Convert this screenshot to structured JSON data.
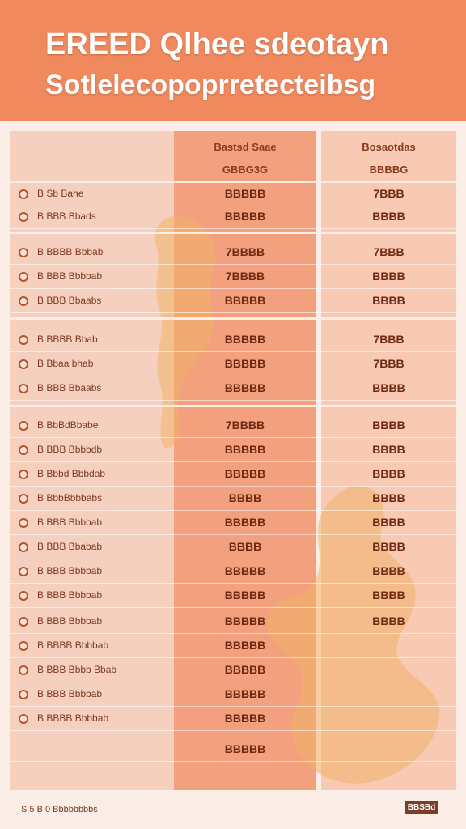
{
  "header": {
    "title_line1": "EREED Qlhee sdeotayn",
    "title_line2": "Sotlelecopoprretecteibsg"
  },
  "table": {
    "col_a_header": [
      "Bastsd Saae",
      "GBBG3G"
    ],
    "col_b_header": [
      "Bosaotdas",
      "BBBBG"
    ],
    "rows": [
      {
        "name": "B Sb Bahe",
        "a": "BBBBB",
        "b": "7BBB"
      },
      {
        "name": "B BBB Bbads",
        "a": "BBBBB",
        "b": "BBBB"
      },
      {
        "name": "B BBBB Bbbab",
        "a": "7BBBB",
        "b": "7BBB"
      },
      {
        "name": "B BBB Bbbbab",
        "a": "7BBBB",
        "b": "BBBB"
      },
      {
        "name": "B BBB Bbaabs",
        "a": "BBBBB",
        "b": "BBBB"
      },
      {
        "name": "B BBBB Bbab",
        "a": "BBBBB",
        "b": "7BBB"
      },
      {
        "name": "B Bbaa bhab",
        "a": "BBBBB",
        "b": "7BBB"
      },
      {
        "name": "B BBB Bbaabs",
        "a": "BBBBB",
        "b": "BBBB"
      },
      {
        "name": "B BbBdBbabe",
        "a": "7BBBB",
        "b": "BBBB"
      },
      {
        "name": "B BBB Bbbbdb",
        "a": "BBBBB",
        "b": "BBBB"
      },
      {
        "name": "B Bbbd Bbbdab",
        "a": "BBBBB",
        "b": "BBBB"
      },
      {
        "name": "B BbbBbbbabs",
        "a": "BBBB",
        "b": "BBBB"
      },
      {
        "name": "B BBB Bbbbab",
        "a": "BBBBB",
        "b": "BBBB"
      },
      {
        "name": "B BBB Bbabab",
        "a": "BBBB",
        "b": "BBBB"
      },
      {
        "name": "B BBB Bbbbab",
        "a": "BBBBB",
        "b": "BBBB"
      },
      {
        "name": "B BBB Bbbbab",
        "a": "BBBBB",
        "b": "BBBB"
      },
      {
        "name": "B BBB Bbbbab",
        "a": "BBBBB",
        "b": "BBBB"
      },
      {
        "name": "B BBBB Bbbbab",
        "a": "BBBBB",
        "b": ""
      },
      {
        "name": "B BBB Bbbb Bbab",
        "a": "BBBBB",
        "b": ""
      },
      {
        "name": "B BBB Bbbbab",
        "a": "BBBBB",
        "b": ""
      },
      {
        "name": "B BBBB Bbbbab",
        "a": "BBBBB",
        "b": ""
      },
      {
        "name": "",
        "a": "BBBBB",
        "b": ""
      }
    ]
  },
  "footer": {
    "left_text": "S 5 B 0  Bbbbbbbbs",
    "right_badge": "BBSBd"
  }
}
